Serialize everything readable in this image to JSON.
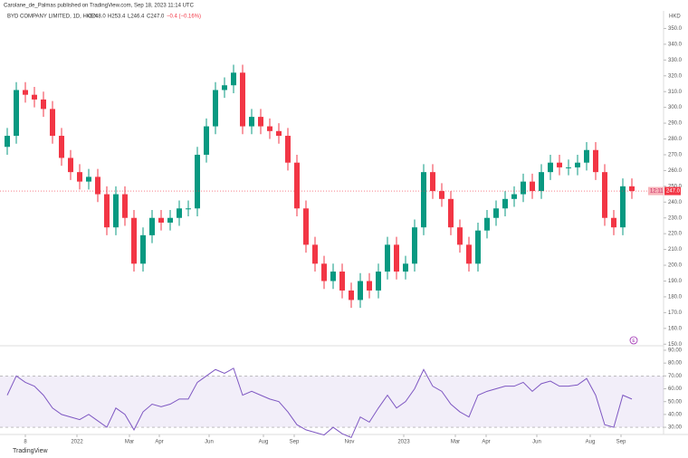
{
  "header": {
    "publisher": "Carolane_de_Palmas published on TradingView.com, Sep 18, 2023 11:14 UTC",
    "symbol": "BYD COMPANY LIMITED, 1D, HKEX",
    "ohlc": [
      "O248.0",
      "H253.4",
      "L246.4",
      "C247.0"
    ],
    "change": "−0.4 (−0.16%)",
    "currency": "HKD"
  },
  "footer": "TradingView",
  "chart_data": [
    {
      "type": "candlestick",
      "open": [
        275,
        282,
        311,
        308,
        305,
        299,
        282,
        268,
        259,
        253,
        256,
        245,
        224,
        245,
        230,
        201,
        219,
        230,
        227,
        230,
        236,
        236,
        270,
        288,
        311,
        314,
        322,
        288,
        294,
        288,
        285,
        282,
        265,
        236,
        213,
        201,
        190,
        196,
        184,
        178,
        190,
        184,
        196,
        213,
        196,
        201,
        224,
        259,
        247,
        242,
        224,
        213,
        201,
        222,
        230,
        236,
        242,
        245,
        253,
        247,
        259,
        265,
        262,
        262,
        265,
        273,
        259,
        230,
        224,
        250
      ],
      "high": [
        287,
        316,
        316,
        313,
        310,
        304,
        287,
        273,
        264,
        261,
        261,
        250,
        250,
        250,
        235,
        224,
        235,
        235,
        235,
        241,
        241,
        275,
        293,
        316,
        319,
        327,
        327,
        299,
        299,
        293,
        290,
        287,
        270,
        241,
        218,
        206,
        201,
        201,
        189,
        195,
        195,
        201,
        218,
        218,
        206,
        229,
        264,
        264,
        252,
        247,
        229,
        218,
        227,
        235,
        241,
        247,
        250,
        258,
        258,
        264,
        270,
        270,
        267,
        270,
        278,
        278,
        264,
        235,
        255,
        255
      ],
      "low": [
        270,
        277,
        303,
        300,
        294,
        277,
        263,
        254,
        248,
        248,
        240,
        219,
        219,
        225,
        196,
        196,
        214,
        222,
        222,
        225,
        231,
        231,
        265,
        283,
        306,
        309,
        283,
        283,
        283,
        280,
        277,
        260,
        231,
        208,
        196,
        185,
        185,
        179,
        173,
        173,
        179,
        179,
        191,
        191,
        191,
        196,
        219,
        242,
        237,
        219,
        208,
        196,
        196,
        217,
        225,
        231,
        237,
        240,
        242,
        242,
        254,
        257,
        257,
        257,
        260,
        254,
        225,
        219,
        219,
        242
      ],
      "close": [
        282,
        311,
        308,
        305,
        299,
        282,
        268,
        259,
        253,
        256,
        245,
        224,
        245,
        230,
        201,
        219,
        230,
        227,
        230,
        236,
        236,
        270,
        288,
        311,
        314,
        322,
        288,
        294,
        288,
        285,
        282,
        265,
        236,
        213,
        201,
        190,
        196,
        184,
        178,
        190,
        184,
        196,
        213,
        196,
        201,
        224,
        259,
        247,
        242,
        224,
        213,
        201,
        222,
        230,
        236,
        242,
        245,
        253,
        247,
        259,
        265,
        262,
        262,
        265,
        273,
        259,
        230,
        224,
        250,
        247
      ],
      "up_color": "#089981",
      "down_color": "#f23645",
      "ylim": [
        149,
        360
      ],
      "yticks": [
        {
          "value": 150,
          "label": "150.0"
        },
        {
          "value": 160,
          "label": "160.0"
        },
        {
          "value": 170,
          "label": "170.0"
        },
        {
          "value": 180,
          "label": "180.0"
        },
        {
          "value": 190,
          "label": "190.0"
        },
        {
          "value": 200,
          "label": "200.0"
        },
        {
          "value": 210,
          "label": "210.0"
        },
        {
          "value": 220,
          "label": "220.0"
        },
        {
          "value": 230,
          "label": "230.0"
        },
        {
          "value": 240,
          "label": "240.0"
        },
        {
          "value": 250,
          "label": "250.0"
        },
        {
          "value": 260,
          "label": "260.0"
        },
        {
          "value": 270,
          "label": "270.0"
        },
        {
          "value": 280,
          "label": "280.0"
        },
        {
          "value": 290,
          "label": "290.0"
        },
        {
          "value": 300,
          "label": "300.0"
        },
        {
          "value": 310,
          "label": "310.0"
        },
        {
          "value": 320,
          "label": "320.0"
        },
        {
          "value": 330,
          "label": "330.0"
        },
        {
          "value": 340,
          "label": "340.0"
        },
        {
          "value": 350,
          "label": "350.0"
        }
      ],
      "xticks": [
        {
          "value": 2,
          "label": "8"
        },
        {
          "value": 7.7,
          "label": "2022"
        },
        {
          "value": 13.5,
          "label": "Mar"
        },
        {
          "value": 16.8,
          "label": "Apr"
        },
        {
          "value": 22.3,
          "label": "Jun"
        },
        {
          "value": 28.3,
          "label": "Aug"
        },
        {
          "value": 31.7,
          "label": "Sep"
        },
        {
          "value": 37.8,
          "label": "Nov"
        },
        {
          "value": 43.8,
          "label": "2023"
        },
        {
          "value": 49.5,
          "label": "Mar"
        },
        {
          "value": 52.9,
          "label": "Apr"
        },
        {
          "value": 58.5,
          "label": "Jun"
        },
        {
          "value": 64.4,
          "label": "Aug"
        },
        {
          "value": 67.8,
          "label": "Sep"
        }
      ],
      "last_price": {
        "value": 247,
        "label": "247.0"
      },
      "countdown": "12:11",
      "earnings_marker": "E"
    },
    {
      "type": "line",
      "values": [
        55,
        70,
        65,
        62,
        55,
        45,
        40,
        38,
        36,
        40,
        35,
        30,
        45,
        40,
        28,
        42,
        48,
        46,
        48,
        52,
        52,
        65,
        70,
        75,
        72,
        76,
        55,
        58,
        55,
        52,
        50,
        42,
        32,
        28,
        26,
        24,
        30,
        25,
        22,
        38,
        34,
        45,
        55,
        45,
        50,
        60,
        75,
        62,
        58,
        48,
        42,
        38,
        55,
        58,
        60,
        62,
        62,
        65,
        58,
        64,
        66,
        62,
        62,
        63,
        68,
        55,
        32,
        30,
        55,
        52
      ],
      "color": "#7e57c2",
      "ylim": [
        24.4,
        92.8
      ],
      "yticks": [
        {
          "value": 30,
          "label": "30.00"
        },
        {
          "value": 40,
          "label": "40.00"
        },
        {
          "value": 50,
          "label": "50.00"
        },
        {
          "value": 60,
          "label": "60.00"
        },
        {
          "value": 70,
          "label": "70.00"
        },
        {
          "value": 80,
          "label": "80.00"
        },
        {
          "value": 90,
          "label": "90.00"
        }
      ],
      "band": [
        30,
        70
      ]
    }
  ]
}
